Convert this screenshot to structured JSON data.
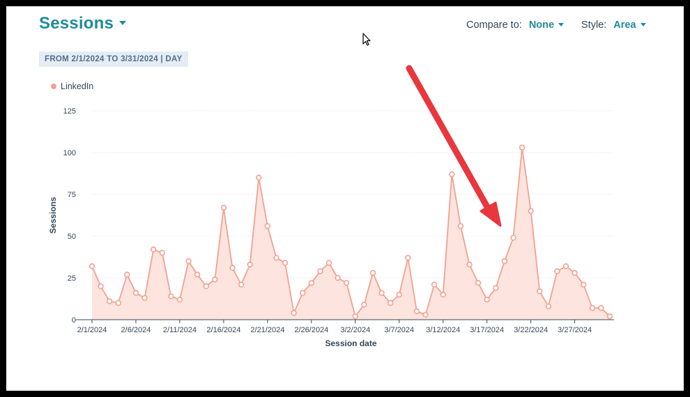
{
  "header": {
    "title": "Sessions",
    "compare_label": "Compare to:",
    "compare_value": "None",
    "style_label": "Style:",
    "style_value": "Area",
    "date_range": "FROM 2/1/2024 TO 3/31/2024 | DAY"
  },
  "colors": {
    "accent": "#1f8b99",
    "series_line": "#f2a190",
    "series_fill": "#fde3dc",
    "arrow": "#e8373d"
  },
  "chart_data": {
    "type": "area",
    "xlabel": "Session date",
    "ylabel": "Sessions",
    "ylim": [
      0,
      125
    ],
    "y_ticks": [
      0,
      25,
      50,
      75,
      100,
      125
    ],
    "x_tick_labels": [
      "2/1/2024",
      "2/6/2024",
      "2/11/2024",
      "2/16/2024",
      "2/21/2024",
      "2/26/2024",
      "3/2/2024",
      "3/7/2024",
      "3/12/2024",
      "3/17/2024",
      "3/22/2024",
      "3/27/2024"
    ],
    "x_tick_every": 5,
    "grid": true,
    "legend_position": "top-left",
    "x": [
      "2/1/2024",
      "2/2/2024",
      "2/3/2024",
      "2/4/2024",
      "2/5/2024",
      "2/6/2024",
      "2/7/2024",
      "2/8/2024",
      "2/9/2024",
      "2/10/2024",
      "2/11/2024",
      "2/12/2024",
      "2/13/2024",
      "2/14/2024",
      "2/15/2024",
      "2/16/2024",
      "2/17/2024",
      "2/18/2024",
      "2/19/2024",
      "2/20/2024",
      "2/21/2024",
      "2/22/2024",
      "2/23/2024",
      "2/24/2024",
      "2/25/2024",
      "2/26/2024",
      "2/27/2024",
      "2/28/2024",
      "2/29/2024",
      "3/1/2024",
      "3/2/2024",
      "3/3/2024",
      "3/4/2024",
      "3/5/2024",
      "3/6/2024",
      "3/7/2024",
      "3/8/2024",
      "3/9/2024",
      "3/10/2024",
      "3/11/2024",
      "3/12/2024",
      "3/13/2024",
      "3/14/2024",
      "3/15/2024",
      "3/16/2024",
      "3/17/2024",
      "3/18/2024",
      "3/19/2024",
      "3/20/2024",
      "3/21/2024",
      "3/22/2024",
      "3/23/2024",
      "3/24/2024",
      "3/25/2024",
      "3/26/2024",
      "3/27/2024",
      "3/28/2024",
      "3/29/2024",
      "3/30/2024",
      "3/31/2024"
    ],
    "series": [
      {
        "name": "LinkedIn",
        "values": [
          32,
          20,
          11,
          10,
          27,
          16,
          13,
          42,
          40,
          14,
          12,
          35,
          27,
          20,
          24,
          67,
          31,
          21,
          33,
          85,
          56,
          37,
          34,
          4,
          16,
          22,
          29,
          34,
          25,
          22,
          2,
          9,
          28,
          16,
          10,
          15,
          37,
          5,
          3,
          21,
          15,
          87,
          56,
          33,
          22,
          12,
          19,
          35,
          49,
          103,
          65,
          17,
          8,
          29,
          32,
          28,
          21,
          7,
          7,
          2
        ]
      }
    ]
  }
}
